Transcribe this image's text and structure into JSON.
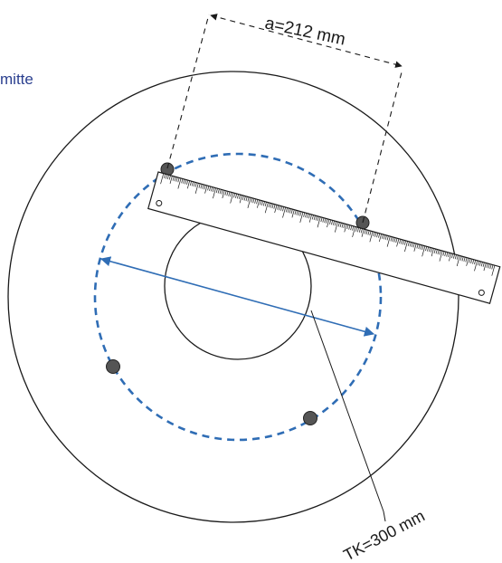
{
  "corner_label": "mitte",
  "distance_label": "a=212 mm",
  "bolt_circle_label": "TK=300 mm",
  "colors": {
    "bolt_circle": "#2f6db5",
    "outline": "#1a1a1a",
    "corner_text": "#2a3f8f",
    "bolt_fill": "#555555"
  }
}
